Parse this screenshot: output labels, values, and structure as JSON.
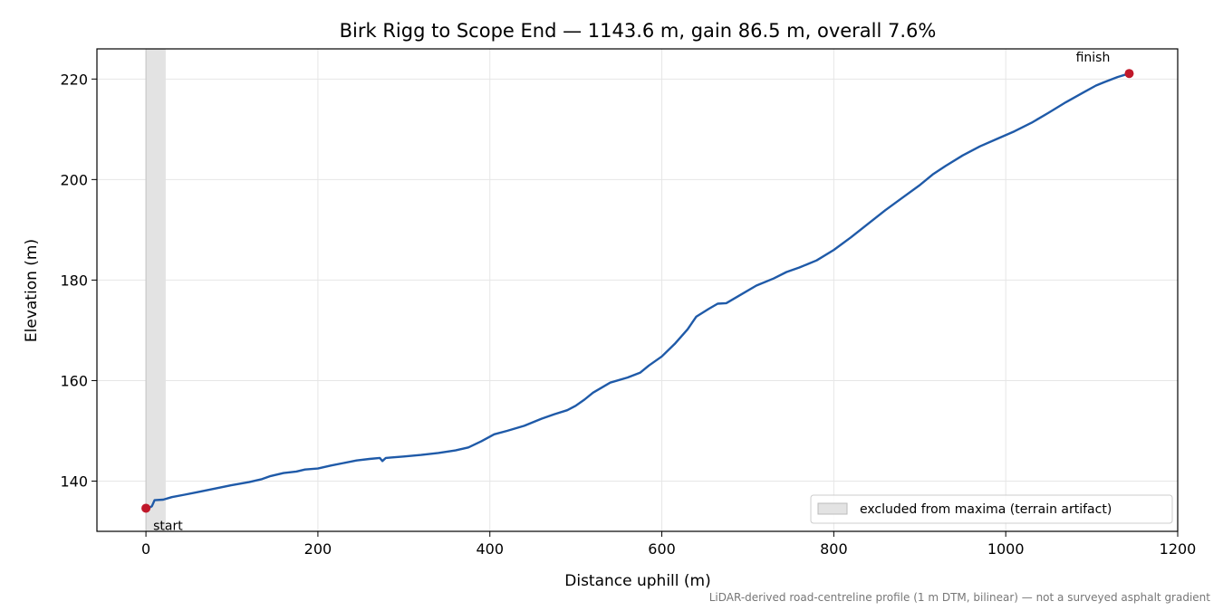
{
  "chart_data": {
    "type": "line",
    "title": "Birk Rigg to Scope End — 1143.6 m, gain 86.5 m, overall 7.6%",
    "xlabel": "Distance uphill (m)",
    "ylabel": "Elevation (m)",
    "xlim": [
      -57,
      1200
    ],
    "ylim": [
      130,
      226
    ],
    "xticks": [
      0,
      200,
      400,
      600,
      800,
      1000,
      1200
    ],
    "yticks": [
      140,
      160,
      180,
      200,
      220
    ],
    "grid": true,
    "legend_position": "bottom-right",
    "excluded_span": {
      "x": [
        0,
        23
      ],
      "label": "excluded from maxima (terrain artifact)",
      "color": "#e3e3e3"
    },
    "series": [
      {
        "color": "#1f5aa8",
        "points": [
          [
            0,
            134.6
          ],
          [
            3,
            134.6
          ],
          [
            7,
            135.0
          ],
          [
            10,
            136.2
          ],
          [
            20,
            136.3
          ],
          [
            30,
            136.8
          ],
          [
            45,
            137.3
          ],
          [
            60,
            137.8
          ],
          [
            80,
            138.5
          ],
          [
            100,
            139.2
          ],
          [
            120,
            139.8
          ],
          [
            135,
            140.4
          ],
          [
            145,
            141.0
          ],
          [
            160,
            141.6
          ],
          [
            175,
            141.9
          ],
          [
            185,
            142.3
          ],
          [
            200,
            142.5
          ],
          [
            215,
            143.1
          ],
          [
            230,
            143.6
          ],
          [
            245,
            144.1
          ],
          [
            260,
            144.4
          ],
          [
            272,
            144.6
          ],
          [
            275,
            144.0
          ],
          [
            279,
            144.6
          ],
          [
            285,
            144.7
          ],
          [
            300,
            144.9
          ],
          [
            320,
            145.2
          ],
          [
            340,
            145.6
          ],
          [
            360,
            146.1
          ],
          [
            375,
            146.7
          ],
          [
            390,
            147.9
          ],
          [
            405,
            149.3
          ],
          [
            420,
            150.0
          ],
          [
            440,
            151.0
          ],
          [
            460,
            152.4
          ],
          [
            475,
            153.3
          ],
          [
            490,
            154.1
          ],
          [
            500,
            155.0
          ],
          [
            510,
            156.2
          ],
          [
            520,
            157.6
          ],
          [
            540,
            159.6
          ],
          [
            560,
            160.6
          ],
          [
            575,
            161.6
          ],
          [
            585,
            163.0
          ],
          [
            600,
            164.8
          ],
          [
            615,
            167.3
          ],
          [
            630,
            170.2
          ],
          [
            640,
            172.7
          ],
          [
            655,
            174.3
          ],
          [
            665,
            175.3
          ],
          [
            675,
            175.4
          ],
          [
            690,
            176.9
          ],
          [
            710,
            178.9
          ],
          [
            730,
            180.3
          ],
          [
            745,
            181.6
          ],
          [
            760,
            182.5
          ],
          [
            780,
            183.9
          ],
          [
            800,
            186.0
          ],
          [
            820,
            188.5
          ],
          [
            840,
            191.2
          ],
          [
            860,
            193.9
          ],
          [
            880,
            196.4
          ],
          [
            900,
            198.9
          ],
          [
            915,
            201.0
          ],
          [
            930,
            202.7
          ],
          [
            950,
            204.8
          ],
          [
            970,
            206.6
          ],
          [
            990,
            208.1
          ],
          [
            1010,
            209.6
          ],
          [
            1030,
            211.3
          ],
          [
            1050,
            213.3
          ],
          [
            1070,
            215.4
          ],
          [
            1090,
            217.3
          ],
          [
            1105,
            218.7
          ],
          [
            1115,
            219.4
          ],
          [
            1130,
            220.4
          ],
          [
            1143.6,
            221.1
          ]
        ]
      }
    ],
    "markers": [
      {
        "label": "start",
        "x": 0,
        "y": 134.6,
        "color": "#c0182a"
      },
      {
        "label": "finish",
        "x": 1143.6,
        "y": 221.1,
        "color": "#c0182a"
      }
    ],
    "footnote": "LiDAR-derived road-centreline profile (1 m DTM, bilinear) — not a surveyed asphalt gradient"
  }
}
